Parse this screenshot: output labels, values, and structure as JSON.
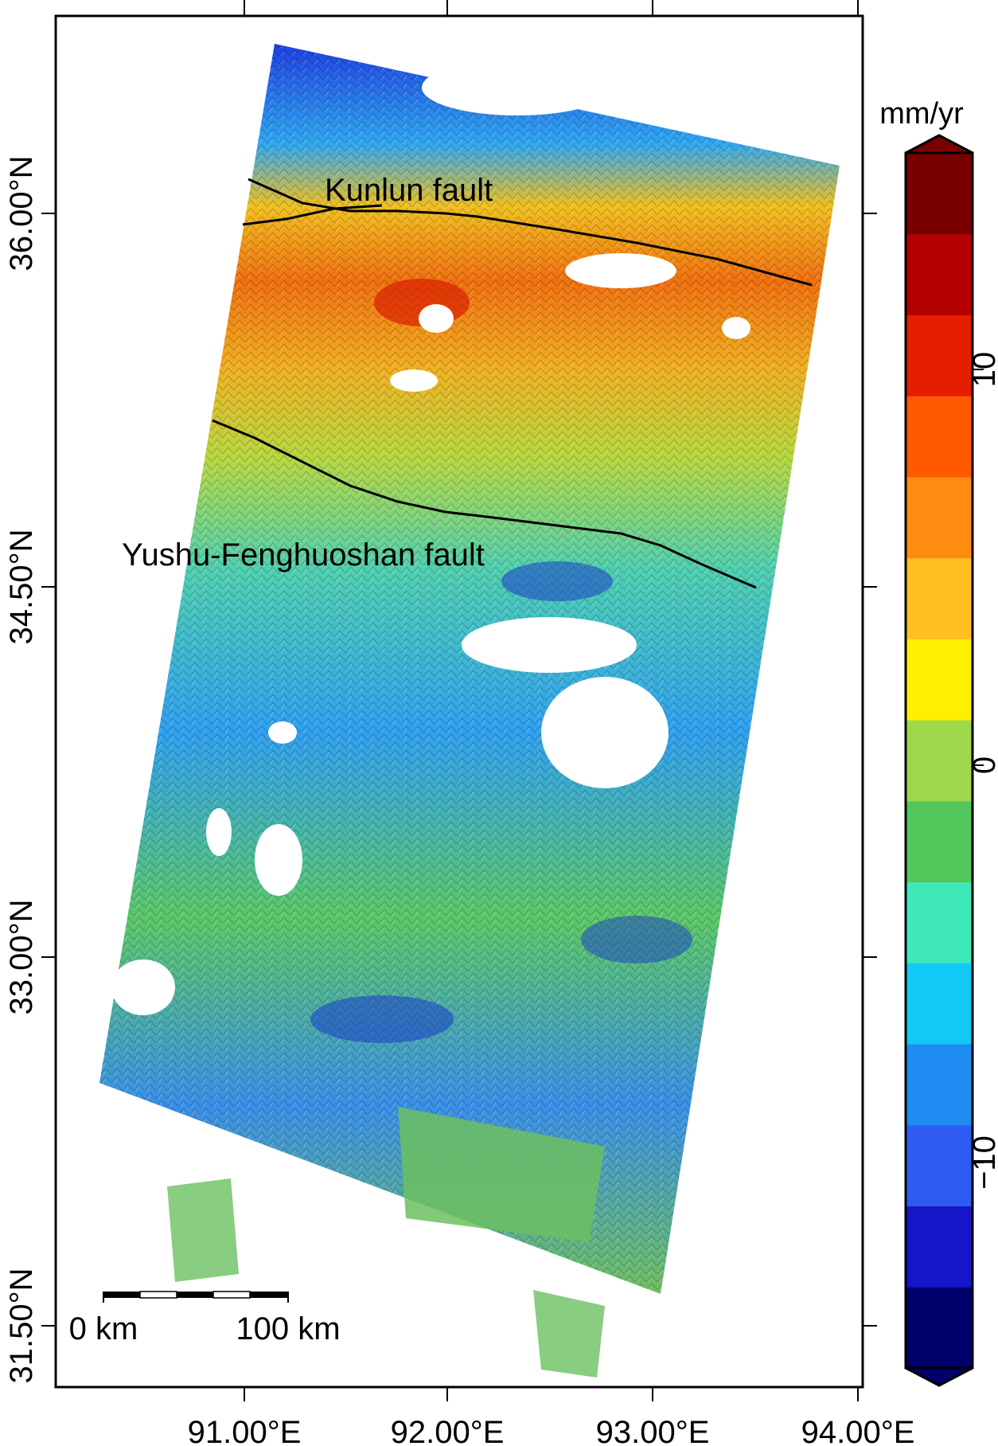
{
  "map": {
    "fault_labels": {
      "kunlun": "Kunlun fault",
      "yushu": "Yushu-Fenghuoshan fault"
    },
    "lon_ticks": [
      "91.00°E",
      "92.00°E",
      "93.00°E",
      "94.00°E"
    ],
    "lat_ticks": [
      "36.00°N",
      "34.50°N",
      "33.00°N",
      "31.50°N"
    ],
    "scale_bar": {
      "start_label": "0 km",
      "end_label": "100 km"
    }
  },
  "colorbar": {
    "unit": "mm/yr",
    "tick_labels": [
      "10",
      "0",
      "−10"
    ],
    "colors": [
      "#00006a",
      "#1616c8",
      "#2e5cf0",
      "#1e8cf0",
      "#12c8f5",
      "#3fe8b8",
      "#52c85c",
      "#9ed84a",
      "#fff000",
      "#ffc020",
      "#ff8c10",
      "#ff5a00",
      "#e61e00",
      "#b40000",
      "#7a0000"
    ]
  }
}
